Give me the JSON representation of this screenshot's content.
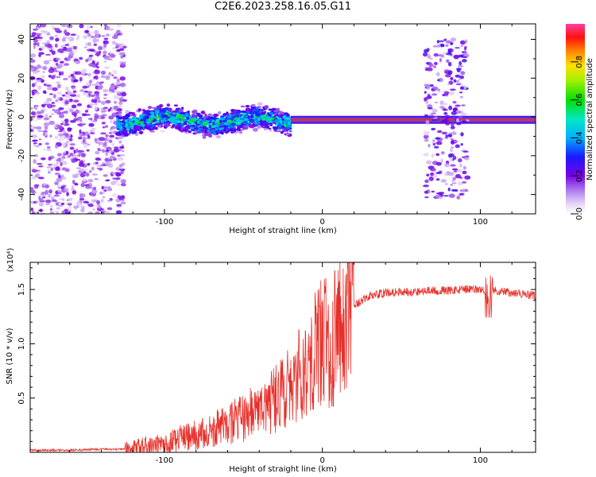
{
  "title": "C2E6.2023.258.16.05.G11",
  "chart_data": [
    {
      "type": "heatmap",
      "title": "C2E6.2023.258.16.05.G11",
      "xlabel": "Height of straight line (km)",
      "ylabel": "Frequency (Hz)",
      "xlim": [
        -185,
        135
      ],
      "ylim": [
        -50,
        48
      ],
      "x_ticks": [
        -100,
        0,
        100
      ],
      "y_ticks": [
        40,
        20,
        0,
        -20,
        -40
      ],
      "grid": false,
      "colorbar": {
        "label": "Normalized spectral amplitude",
        "range": [
          0,
          1
        ],
        "ticks": [
          "0.0",
          "0.2",
          "0.4",
          "0.6",
          "0.8"
        ]
      },
      "features": [
        {
          "name": "noise",
          "x_range": [
            -185,
            -125
          ],
          "freq_range": [
            -50,
            48
          ],
          "amplitude": 0.2
        },
        {
          "name": "turbulent band",
          "x_range": [
            -130,
            -20
          ],
          "freq_center": -2,
          "freq_halfwidth": 8,
          "amplitude": 0.5
        },
        {
          "name": "tone",
          "x_range": [
            -20,
            135
          ],
          "freq_center": -1.5,
          "amplitude": 0.95
        },
        {
          "name": "spread",
          "x_range": [
            65,
            92
          ],
          "freq_range": [
            -42,
            40
          ],
          "amplitude": 0.25
        }
      ]
    },
    {
      "type": "line",
      "xlabel": "Height of straight line (km)",
      "ylabel": "SNR (10 * v/v)",
      "y_multiplier": "(x10⁴)",
      "xlim": [
        -185,
        135
      ],
      "ylim": [
        0,
        1.75
      ],
      "x_ticks": [
        -100,
        0,
        100
      ],
      "y_ticks": [
        "0.5",
        "1.0",
        "1.5"
      ],
      "grid": false,
      "color": "#e8302a",
      "series": [
        {
          "x": [
            -185,
            -160,
            -140,
            -125,
            -115,
            -100,
            -90,
            -80,
            -70,
            -60,
            -50,
            -40,
            -30,
            -20,
            -15,
            -10,
            -5,
            0,
            5,
            10,
            15,
            20,
            30,
            40,
            50,
            60,
            70,
            80,
            90,
            100,
            105,
            110,
            120,
            135
          ],
          "y": [
            0.02,
            0.02,
            0.03,
            0.03,
            0.06,
            0.08,
            0.13,
            0.16,
            0.2,
            0.26,
            0.32,
            0.4,
            0.48,
            0.62,
            0.7,
            0.82,
            0.95,
            1.05,
            1.0,
            1.1,
            1.25,
            1.35,
            1.44,
            1.47,
            1.48,
            1.48,
            1.49,
            1.49,
            1.5,
            1.5,
            1.48,
            1.49,
            1.47,
            1.44
          ]
        }
      ]
    }
  ]
}
